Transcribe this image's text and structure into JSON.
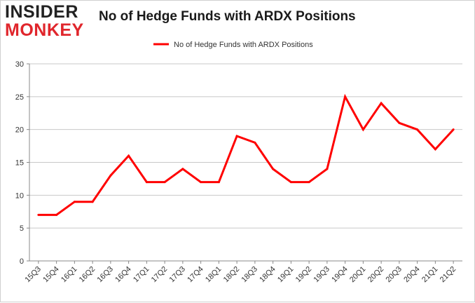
{
  "logo": {
    "top": "INSIDER",
    "bottom": "MONKEY"
  },
  "colors": {
    "series": "#ff0000",
    "grid": "#c8c8c8",
    "axis": "#888888",
    "logo_red": "#e0262c"
  },
  "chart_data": {
    "type": "line",
    "title": "No of Hedge Funds with ARDX Positions",
    "xlabel": "",
    "ylabel": "",
    "x": [
      "15Q3",
      "15Q4",
      "16Q1",
      "16Q2",
      "16Q3",
      "16Q4",
      "17Q1",
      "17Q2",
      "17Q3",
      "17Q4",
      "18Q1",
      "18Q2",
      "18Q3",
      "18Q4",
      "19Q1",
      "19Q2",
      "19Q3",
      "19Q4",
      "20Q1",
      "20Q2",
      "20Q3",
      "20Q4",
      "21Q1",
      "21Q2"
    ],
    "series": [
      {
        "name": "No of Hedge Funds with ARDX Positions",
        "values": [
          7,
          7,
          9,
          9,
          13,
          16,
          12,
          12,
          14,
          12,
          12,
          19,
          18,
          14,
          12,
          12,
          14,
          25,
          20,
          24,
          21,
          20,
          17,
          20
        ]
      }
    ],
    "ylim": [
      0,
      30
    ],
    "yticks": [
      0,
      5,
      10,
      15,
      20,
      25,
      30
    ],
    "grid": true,
    "legend_position": "top-center"
  }
}
